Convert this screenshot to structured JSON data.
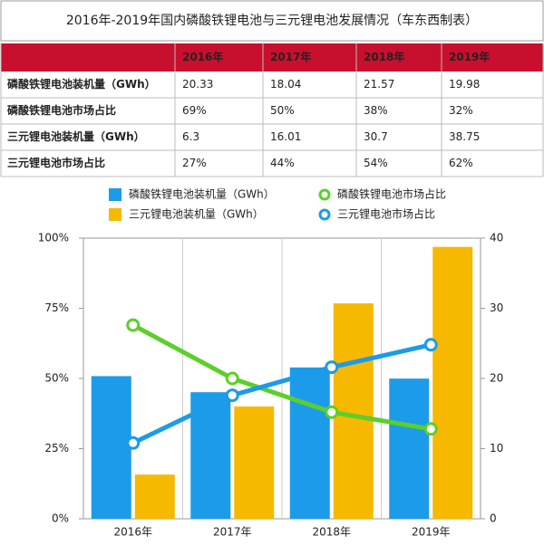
{
  "title": "2016年-2019年国内磷酸铁锂电池与三元锂电池发展情况（车东西制表）",
  "table": {
    "header": [
      "2016年",
      "2017年",
      "2018年",
      "2019年"
    ],
    "rows": [
      {
        "label": "磷酸铁锂电池装机量（GWh）",
        "cells": [
          "20.33",
          "18.04",
          "21.57",
          "19.98"
        ]
      },
      {
        "label": "磷酸铁锂电池市场占比",
        "cells": [
          "69%",
          "50%",
          "38%",
          "32%"
        ]
      },
      {
        "label": "三元锂电池装机量（GWh）",
        "cells": [
          "6.3",
          "16.01",
          "30.7",
          "38.75"
        ]
      },
      {
        "label": "三元锂电池市场占比",
        "cells": [
          "27%",
          "44%",
          "54%",
          "62%"
        ]
      }
    ]
  },
  "chart_data": {
    "type": "combo",
    "categories": [
      "2016年",
      "2017年",
      "2018年",
      "2019年"
    ],
    "series": [
      {
        "name": "磷酸铁锂电池装机量（GWh）",
        "type": "bar",
        "axis": "y2",
        "color": "#1c9be9",
        "values": [
          20.33,
          18.04,
          21.57,
          19.98
        ]
      },
      {
        "name": "三元锂电池装机量（GWh）",
        "type": "bar",
        "axis": "y2",
        "color": "#f6b900",
        "values": [
          6.3,
          16.01,
          30.7,
          38.75
        ]
      },
      {
        "name": "磷酸铁锂电池市场占比",
        "type": "line",
        "color": "#5ccf2b",
        "values": [
          69,
          50,
          38,
          32
        ]
      },
      {
        "name": "三元锂电池市场占比",
        "type": "line",
        "color": "#1c9be9",
        "values": [
          27,
          44,
          54,
          62
        ]
      }
    ],
    "ylim": [
      0,
      100
    ],
    "yticks": [
      {
        "value": 0,
        "label": "0%"
      },
      {
        "value": 25,
        "label": "25%"
      },
      {
        "value": 50,
        "label": "50%"
      },
      {
        "value": 75,
        "label": "75%"
      },
      {
        "value": 100,
        "label": "100%"
      }
    ],
    "y2lim": [
      0,
      40
    ],
    "y2ticks": [
      0,
      10,
      20,
      30,
      40
    ]
  }
}
